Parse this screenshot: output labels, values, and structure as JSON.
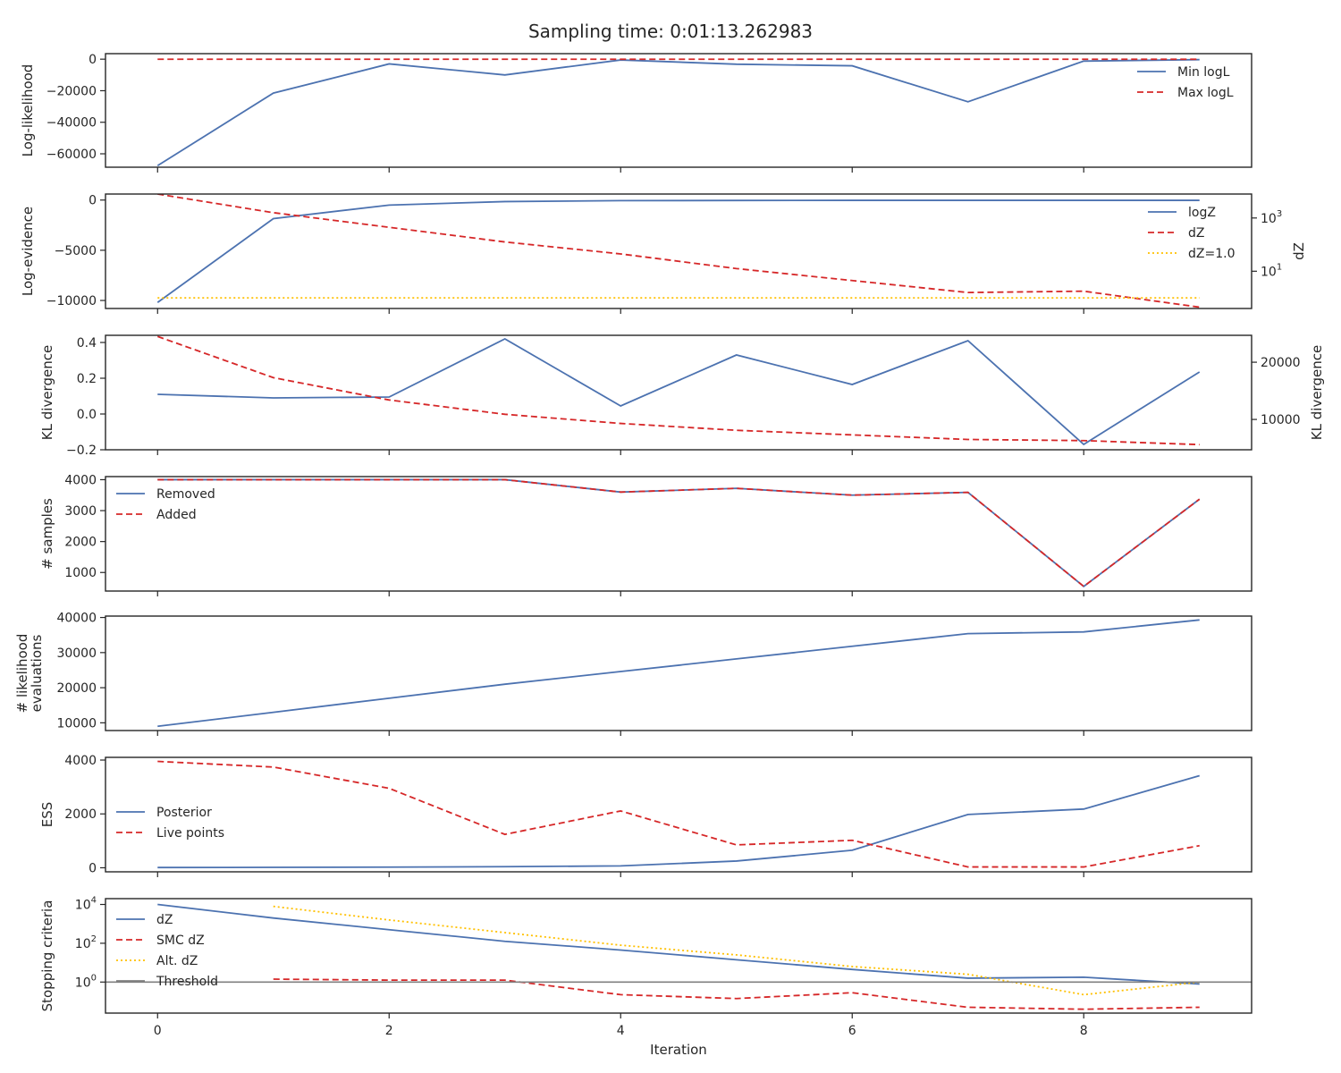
{
  "title": "Sampling time: 0:01:13.262983",
  "chart_data": {
    "type": "line",
    "title": "Sampling time: 0:01:13.262983",
    "xlabel": "Iteration",
    "x": [
      0,
      1,
      2,
      3,
      4,
      5,
      6,
      7,
      8,
      9
    ],
    "xlim": [
      -0.45,
      9.45
    ],
    "xticks": [
      0,
      2,
      4,
      6,
      8
    ],
    "colors": {
      "blue": "#4c72b0",
      "red": "#d62728",
      "gold": "#ffc000",
      "gray": "#808080"
    },
    "panels": [
      {
        "ylabel": [
          "Log-likelihood"
        ],
        "ylim": [
          -68500,
          3500
        ],
        "yticks": [
          {
            "v": 0,
            "label": "0"
          },
          {
            "v": -20000,
            "label": "−20000"
          },
          {
            "v": -40000,
            "label": "−40000"
          },
          {
            "v": -60000,
            "label": "−60000"
          }
        ],
        "legend": "top-right",
        "series": [
          {
            "name": "Min logL",
            "style": "solid",
            "color": "#4c72b0",
            "values": [
              -67500,
              -21500,
              -3000,
              -10000,
              -500,
              -3200,
              -4200,
              -27000,
              -1200,
              -300
            ]
          },
          {
            "name": "Max logL",
            "style": "dashed",
            "color": "#d62728",
            "values": [
              -50,
              -50,
              -50,
              -50,
              -50,
              -50,
              -50,
              -50,
              -50,
              -50
            ]
          }
        ]
      },
      {
        "ylabel": [
          "Log-evidence"
        ],
        "ylim": [
          -10800,
          600
        ],
        "yticks": [
          {
            "v": 0,
            "label": "0"
          },
          {
            "v": -5000,
            "label": "−5000"
          },
          {
            "v": -10000,
            "label": "−10000"
          }
        ],
        "legend": "top-right",
        "series": [
          {
            "name": "logZ",
            "style": "solid",
            "color": "#4c72b0",
            "axis": "left",
            "values": [
              -10200,
              -1850,
              -500,
              -150,
              -60,
              -40,
              -30,
              -30,
              -30,
              -30
            ]
          }
        ],
        "right_axis": {
          "ylabel": "dZ",
          "scale": "log",
          "ylim_log10": [
            -0.4,
            3.9
          ],
          "yticks": [
            {
              "v": 3,
              "base": "10",
              "exp": "3"
            },
            {
              "v": 1,
              "base": "10",
              "exp": "1"
            }
          ],
          "series": [
            {
              "name": "dZ",
              "style": "dashed",
              "color": "#d62728",
              "log10_values": [
                3.9,
                3.2,
                2.65,
                2.1,
                1.65,
                1.1,
                0.65,
                0.2,
                0.25,
                -0.35
              ]
            },
            {
              "name": "dZ=1.0",
              "style": "dotted",
              "color": "#ffc000",
              "log10_values": [
                0,
                0,
                0,
                0,
                0,
                0,
                0,
                0,
                0,
                0
              ]
            }
          ]
        }
      },
      {
        "ylabel": [
          "KL divergence"
        ],
        "ylim": [
          -0.2,
          0.44
        ],
        "yticks": [
          {
            "v": 0.4,
            "label": "0.4"
          },
          {
            "v": 0.2,
            "label": "0.2"
          },
          {
            "v": 0.0,
            "label": "0.0"
          },
          {
            "v": -0.2,
            "label": "−0.2"
          }
        ],
        "legend": "none",
        "series": [
          {
            "name": "",
            "style": "solid",
            "color": "#4c72b0",
            "axis": "left",
            "values": [
              0.11,
              0.09,
              0.095,
              0.42,
              0.045,
              0.33,
              0.165,
              0.41,
              -0.17,
              0.235
            ]
          }
        ],
        "right_axis": {
          "ylabel": "KL divergence",
          "scale": "linear",
          "ylim": [
            4700,
            24700
          ],
          "yticks": [
            {
              "v": 20000,
              "label": "20000"
            },
            {
              "v": 10000,
              "label": "10000"
            }
          ],
          "series": [
            {
              "name": "",
              "style": "dashed",
              "color": "#d62728",
              "values": [
                24500,
                17300,
                13400,
                10900,
                9300,
                8100,
                7300,
                6500,
                6300,
                5600
              ]
            }
          ]
        }
      },
      {
        "ylabel": [
          "# samples"
        ],
        "ylim": [
          400,
          4100
        ],
        "yticks": [
          {
            "v": 4000,
            "label": "4000"
          },
          {
            "v": 3000,
            "label": "3000"
          },
          {
            "v": 2000,
            "label": "2000"
          },
          {
            "v": 1000,
            "label": "1000"
          }
        ],
        "legend": "top-left",
        "series": [
          {
            "name": "Removed",
            "style": "solid",
            "color": "#4c72b0",
            "values": [
              4000,
              4000,
              4000,
              4000,
              3600,
              3720,
              3500,
              3590,
              550,
              3370
            ]
          },
          {
            "name": "Added",
            "style": "dashed",
            "color": "#d62728",
            "values": [
              4000,
              4000,
              4000,
              4000,
              3600,
              3720,
              3500,
              3590,
              550,
              3370
            ]
          }
        ]
      },
      {
        "ylabel": [
          "# likelihood",
          "evaluations"
        ],
        "ylim": [
          7800,
          40400
        ],
        "yticks": [
          {
            "v": 40000,
            "label": "40000"
          },
          {
            "v": 30000,
            "label": "30000"
          },
          {
            "v": 20000,
            "label": "20000"
          },
          {
            "v": 10000,
            "label": "10000"
          }
        ],
        "legend": "none",
        "series": [
          {
            "name": "",
            "style": "solid",
            "color": "#4c72b0",
            "values": [
              9000,
              13000,
              17000,
              21000,
              24600,
              28200,
              31800,
              35400,
              35900,
              39300
            ]
          }
        ]
      },
      {
        "ylabel": [
          "ESS"
        ],
        "ylim": [
          -150,
          4100
        ],
        "yticks": [
          {
            "v": 4000,
            "label": "4000"
          },
          {
            "v": 2000,
            "label": "2000"
          },
          {
            "v": 0,
            "label": "0"
          }
        ],
        "legend": "bottom-left",
        "series": [
          {
            "name": "Posterior",
            "style": "solid",
            "color": "#4c72b0",
            "values": [
              10,
              15,
              25,
              40,
              70,
              250,
              650,
              1980,
              2180,
              3420
            ]
          },
          {
            "name": "Live points",
            "style": "dashed",
            "color": "#d62728",
            "values": [
              3950,
              3740,
              2950,
              1240,
              2110,
              850,
              1020,
              30,
              30,
              820
            ]
          }
        ]
      },
      {
        "ylabel": [
          "Stopping criteria"
        ],
        "scale": "log",
        "ylim_log10": [
          -1.6,
          4.3
        ],
        "yticks": [
          {
            "v": 4,
            "base": "10",
            "exp": "4"
          },
          {
            "v": 2,
            "base": "10",
            "exp": "2"
          },
          {
            "v": 0,
            "base": "10",
            "exp": "0"
          }
        ],
        "legend": "bottom-left",
        "series": [
          {
            "name": "dZ",
            "style": "solid",
            "color": "#4c72b0",
            "log10_values": [
              4.0,
              3.3,
              2.7,
              2.1,
              1.65,
              1.15,
              0.65,
              0.2,
              0.25,
              -0.1
            ]
          },
          {
            "name": "SMC dZ",
            "style": "dashed",
            "color": "#d62728",
            "log10_values": [
              null,
              0.15,
              0.1,
              0.1,
              -0.65,
              -0.85,
              -0.55,
              -1.3,
              -1.4,
              -1.3
            ]
          },
          {
            "name": "Alt. dZ",
            "style": "dotted",
            "color": "#ffc000",
            "log10_values": [
              null,
              3.9,
              3.2,
              2.55,
              1.9,
              1.4,
              0.8,
              0.4,
              -0.65,
              0.0
            ]
          },
          {
            "name": "Threshold",
            "style": "solid",
            "color": "#808080",
            "log10_values": [
              0,
              0,
              0,
              0,
              0,
              0,
              0,
              0,
              0,
              0
            ],
            "full_width": true
          }
        ]
      }
    ]
  }
}
